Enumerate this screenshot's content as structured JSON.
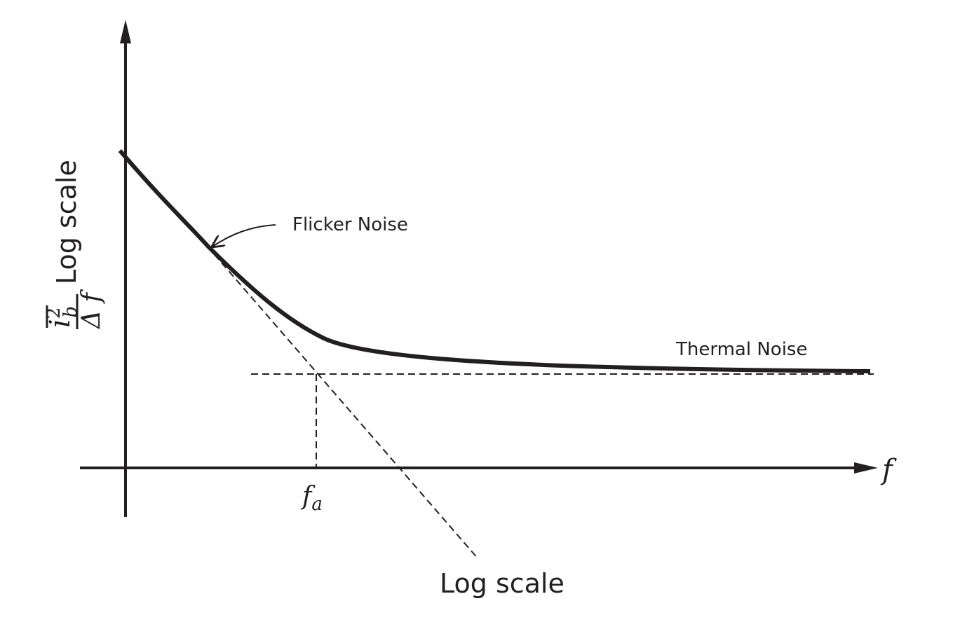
{
  "figure": {
    "x_axis": {
      "symbol": "f",
      "scale_label": "Log scale",
      "marker": {
        "symbol": "f",
        "subscript": "a"
      }
    },
    "y_axis": {
      "numerator": {
        "symbol": "i",
        "subscript": "b",
        "superscript": "2"
      },
      "denominator": "Δ f",
      "scale_label": "Log scale"
    },
    "annotations": {
      "flicker": "Flicker Noise",
      "thermal": "Thermal Noise"
    },
    "colors": {
      "ink": "#231f20",
      "background": "#ffffff"
    }
  }
}
